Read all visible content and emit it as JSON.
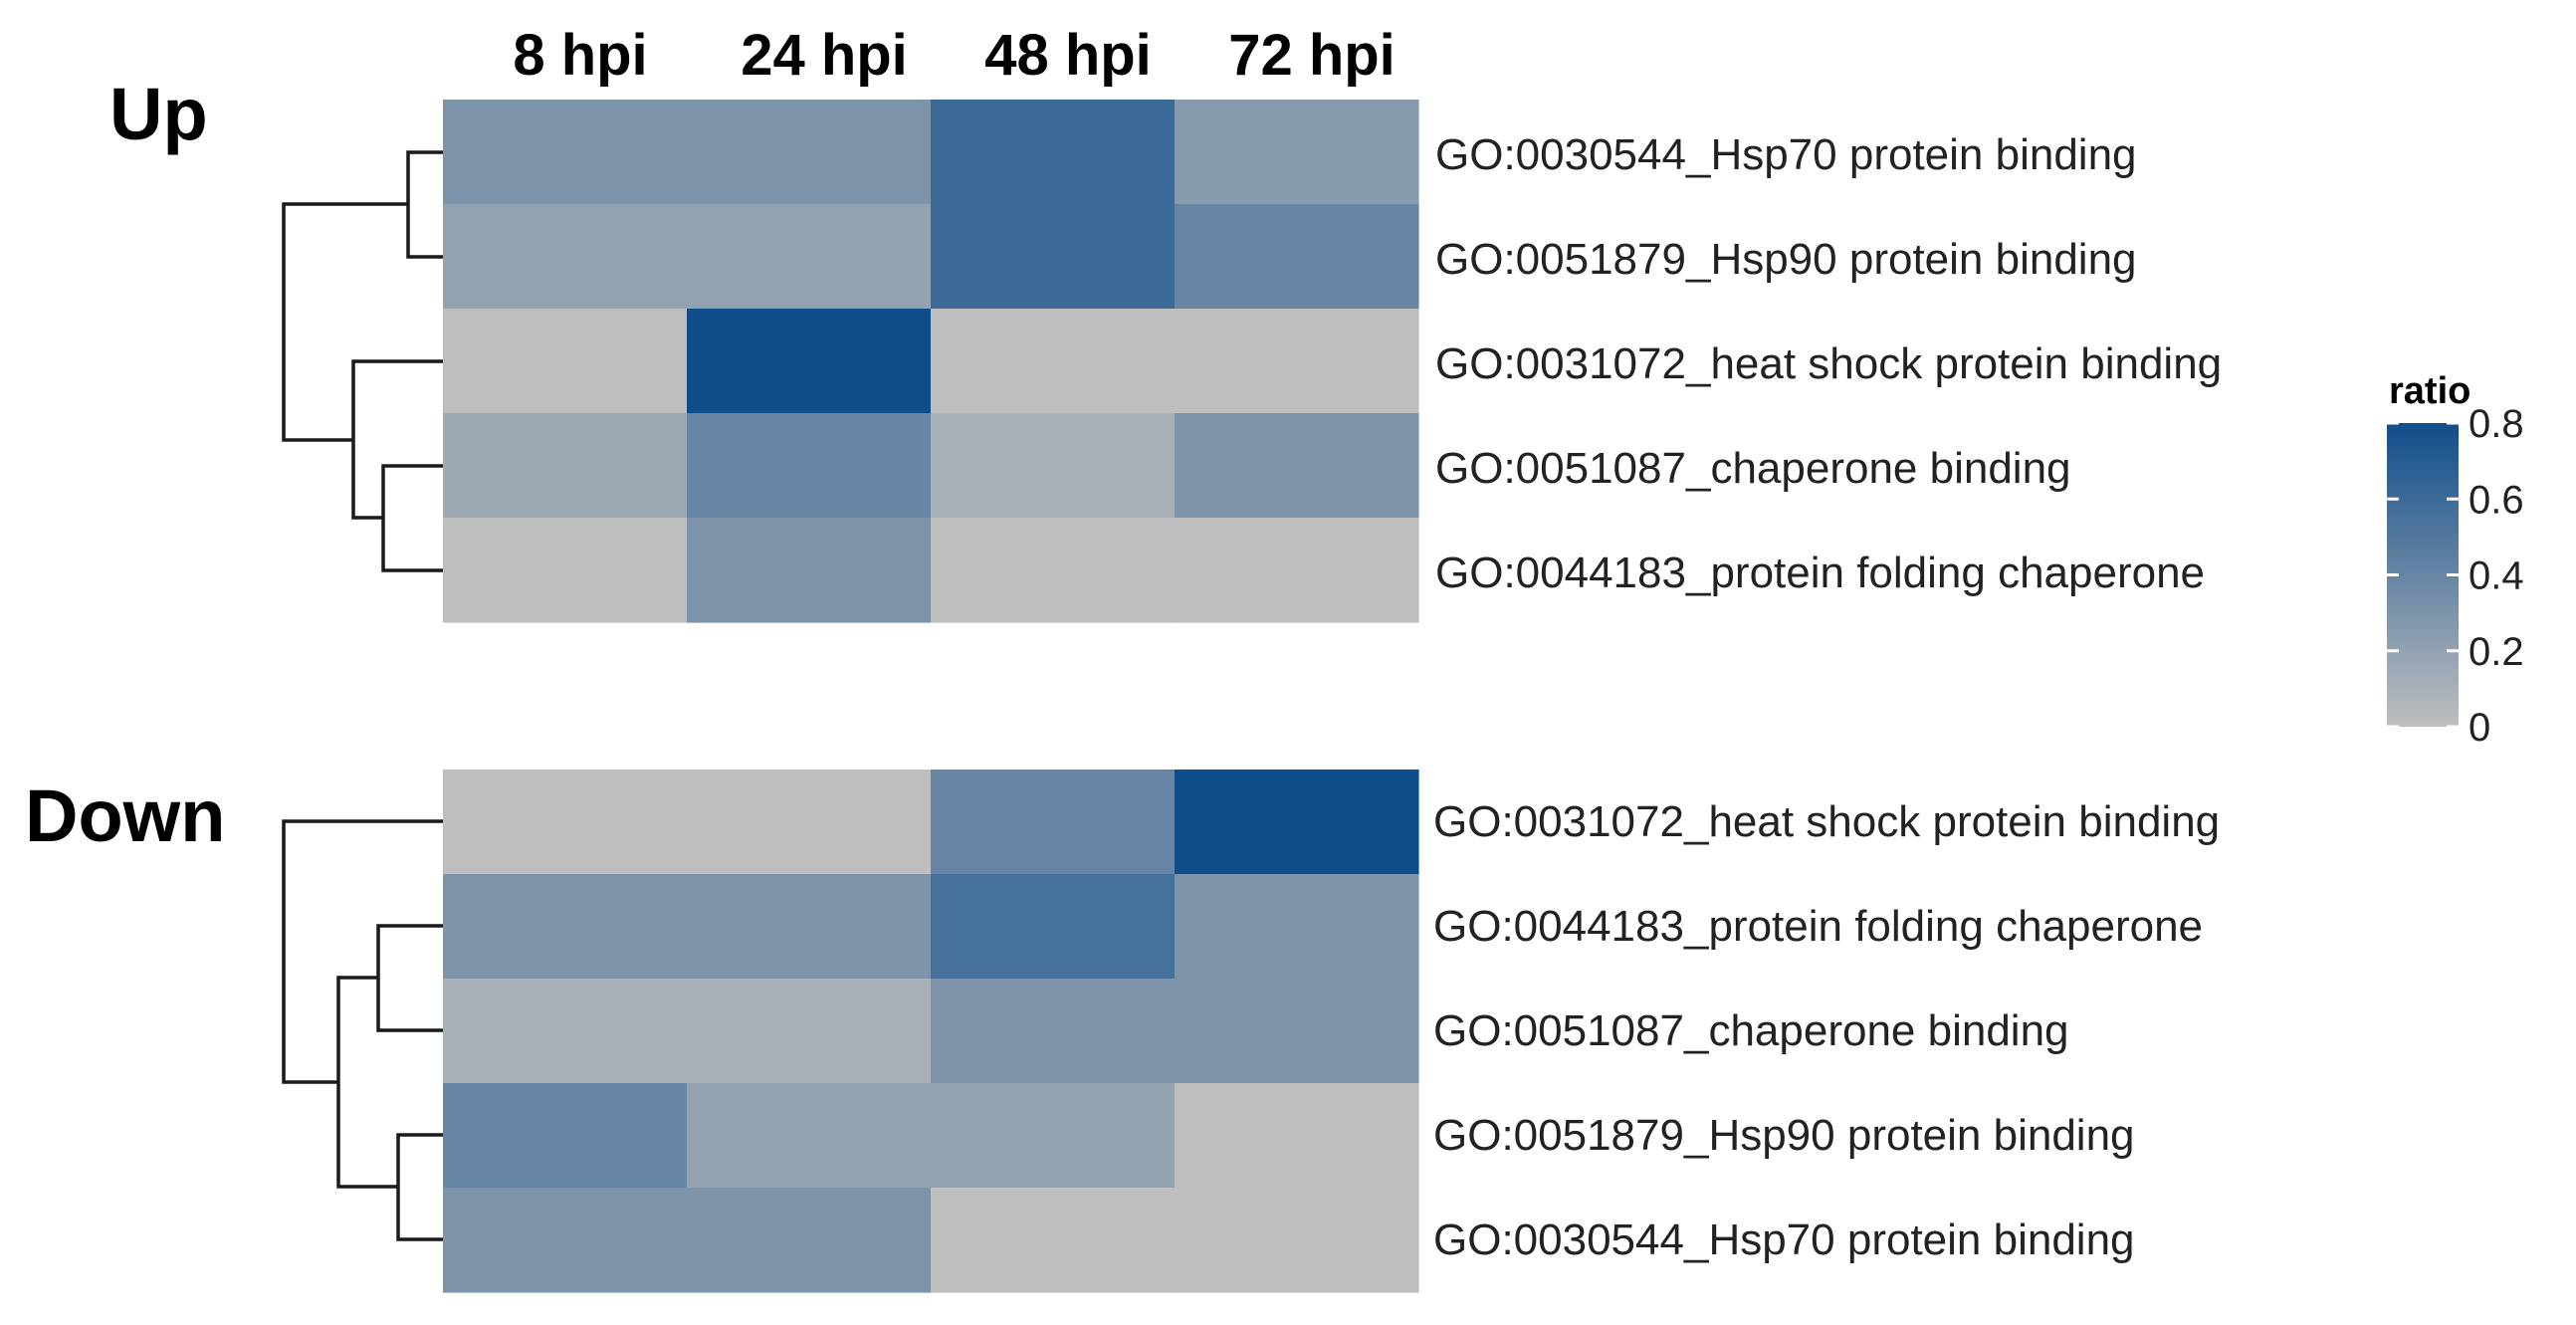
{
  "chart_data": {
    "type": "heatmap",
    "columns": [
      "8 hpi",
      "24 hpi",
      "48 hpi",
      "72 hpi"
    ],
    "panels": [
      {
        "label": "Up",
        "rows": [
          "GO:0030544_Hsp70 protein binding",
          "GO:0051879_Hsp90 protein binding",
          "GO:0031072_heat shock protein binding",
          "GO:0051087_chaperone binding",
          "GO:0044183_protein folding chaperone"
        ],
        "values": [
          [
            0.3,
            0.3,
            0.6,
            0.25
          ],
          [
            0.2,
            0.2,
            0.6,
            0.4
          ],
          [
            0.0,
            0.8,
            0.0,
            0.0
          ],
          [
            0.15,
            0.4,
            0.1,
            0.3
          ],
          [
            0.0,
            0.3,
            0.0,
            0.0
          ]
        ],
        "dendrogram": "((GO:0030544,GO:0051879),(GO:0031072,(GO:0051087,GO:0044183)))"
      },
      {
        "label": "Down",
        "rows": [
          "GO:0031072_heat shock protein binding",
          "GO:0044183_protein folding chaperone",
          "GO:0051087_chaperone binding",
          "GO:0051879_Hsp90 protein binding",
          "GO:0030544_Hsp70 protein binding"
        ],
        "values": [
          [
            0.0,
            0.0,
            0.4,
            0.8
          ],
          [
            0.3,
            0.3,
            0.55,
            0.3
          ],
          [
            0.1,
            0.1,
            0.3,
            0.3
          ],
          [
            0.4,
            0.2,
            0.2,
            0.0
          ],
          [
            0.3,
            0.3,
            0.0,
            0.0
          ]
        ],
        "dendrogram": "(GO:0031072,((GO:0044183,GO:0051087),(GO:0051879,GO:0030544)))"
      }
    ],
    "legend": {
      "title": "ratio",
      "ticks": [
        "0",
        "0.2",
        "0.4",
        "0.6",
        "0.8"
      ],
      "range": [
        0,
        0.8
      ],
      "low_color": "#bebebe",
      "high_color": "#104e8b",
      "placement": "right"
    }
  }
}
